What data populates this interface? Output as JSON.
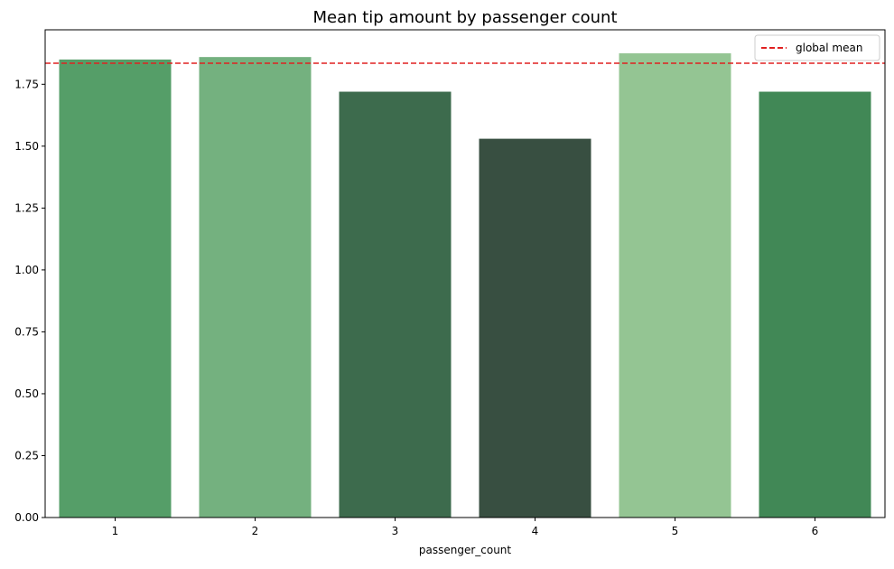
{
  "chart_data": {
    "type": "bar",
    "title": "Mean tip amount by passenger count",
    "xlabel": "passenger_count",
    "ylabel": "",
    "categories": [
      "1",
      "2",
      "3",
      "4",
      "5",
      "6"
    ],
    "values": [
      1.85,
      1.86,
      1.72,
      1.53,
      1.875,
      1.72
    ],
    "bar_colors": [
      "#559e68",
      "#74b17f",
      "#3d6b4d",
      "#384f41",
      "#94c593",
      "#418856"
    ],
    "yticks": [
      "0.00",
      "0.25",
      "0.50",
      "0.75",
      "1.00",
      "1.25",
      "1.50",
      "1.75"
    ],
    "ylim": [
      0,
      1.97
    ],
    "reference_line": {
      "value": 1.835,
      "label": "global mean",
      "color": "#e02020",
      "style": "dashed"
    },
    "legend_position": "top-right",
    "grid": false
  }
}
